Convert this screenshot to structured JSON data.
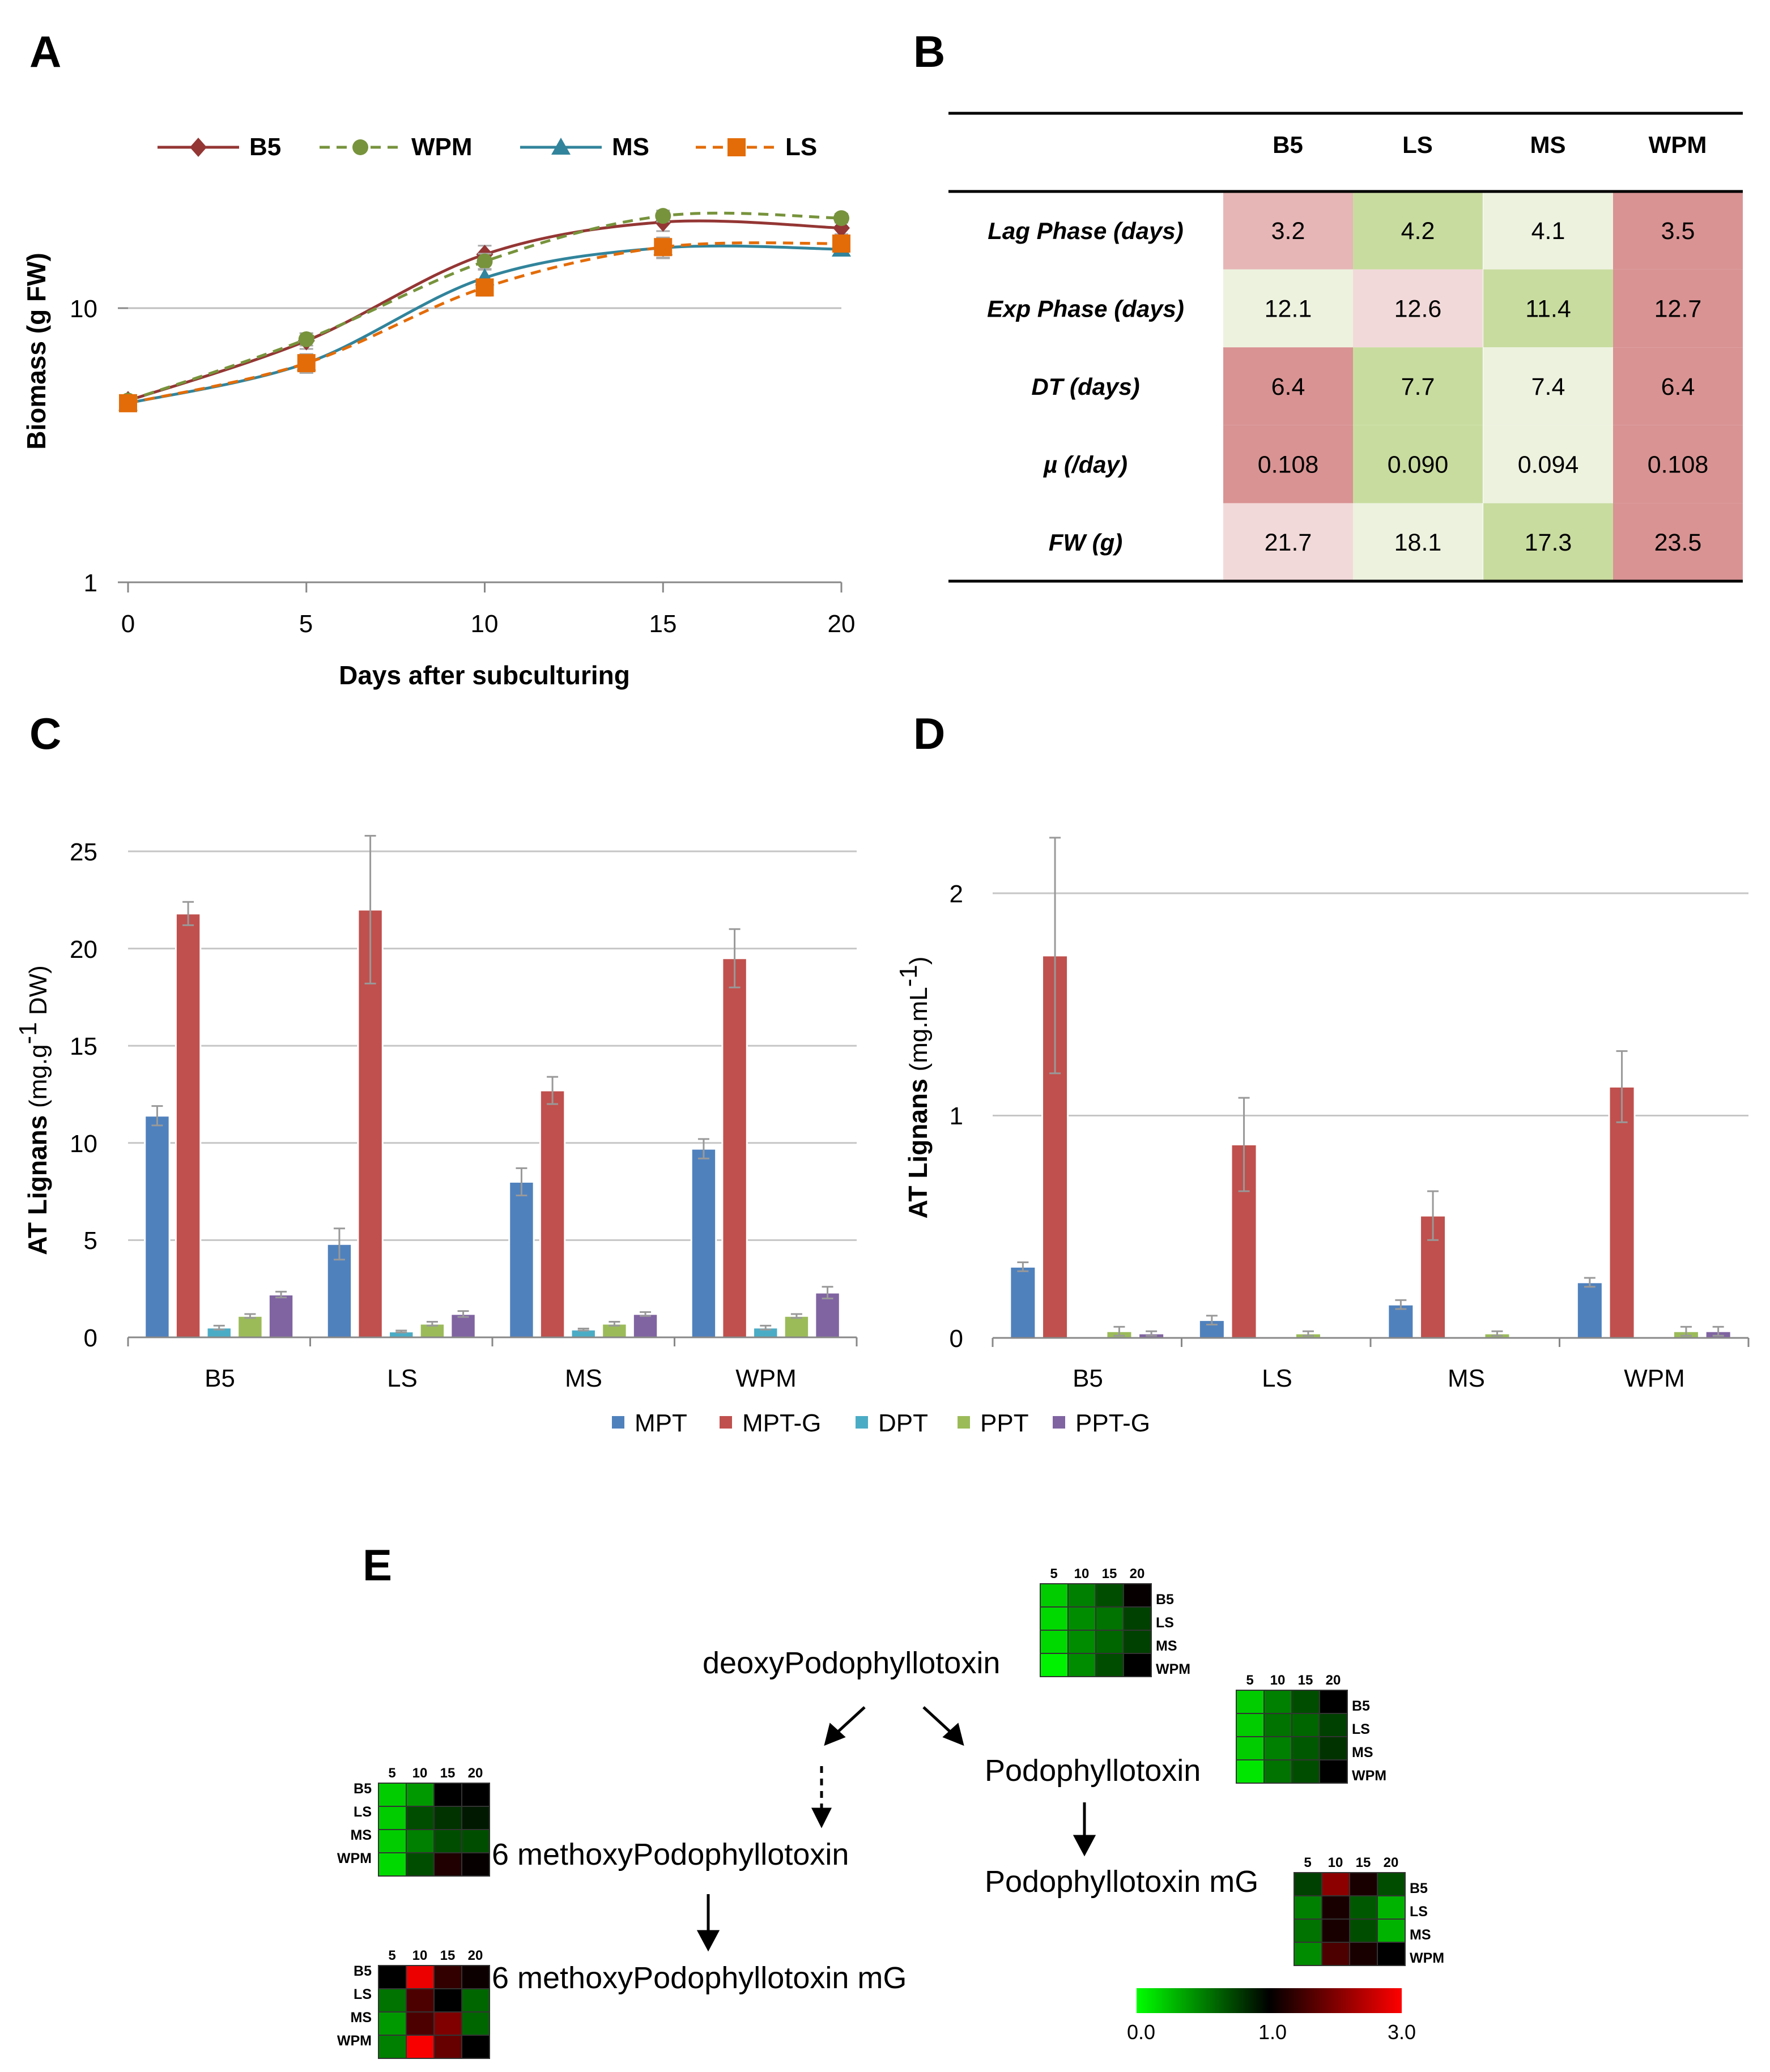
{
  "panels": {
    "a": "A",
    "b": "B",
    "c": "C",
    "d": "D",
    "e": "E"
  },
  "chart_data": [
    {
      "id": "A",
      "type": "line",
      "yscale": "log",
      "xlabel": "Days after subculturing",
      "ylabel": "Biomass (g FW)",
      "x": [
        0,
        5,
        10,
        15,
        20
      ],
      "xticks": [
        "0",
        "5",
        "10",
        "15",
        "20"
      ],
      "yticks": [
        "1",
        "10"
      ],
      "ylim": [
        1,
        30
      ],
      "legend_position": "top",
      "series": [
        {
          "name": "B5",
          "marker": "diamond",
          "dashed": false,
          "color": "#943634",
          "values": [
            4.6,
            7.6,
            15.7,
            20.6,
            19.6
          ],
          "err": [
            0.2,
            0.5,
            1.2,
            1.5,
            1.0
          ]
        },
        {
          "name": "WPM",
          "marker": "circle",
          "dashed": true,
          "color": "#77933c",
          "values": [
            4.6,
            7.7,
            14.8,
            21.7,
            21.3
          ],
          "err": [
            0.2,
            0.4,
            1.0,
            1.0,
            0.8
          ]
        },
        {
          "name": "MS",
          "marker": "triangle",
          "dashed": false,
          "color": "#31849b",
          "values": [
            4.5,
            6.3,
            12.9,
            16.6,
            16.4
          ],
          "err": [
            0.2,
            0.5,
            1.0,
            1.4,
            0.6
          ]
        },
        {
          "name": "LS",
          "marker": "square",
          "dashed": true,
          "color": "#e36c09",
          "values": [
            4.5,
            6.3,
            11.9,
            16.7,
            17.2
          ],
          "err": [
            0.2,
            0.5,
            0.8,
            1.4,
            0.8
          ]
        }
      ]
    },
    {
      "id": "B",
      "type": "table",
      "columns": [
        "B5",
        "LS",
        "MS",
        "WPM"
      ],
      "rows": [
        {
          "label": "Lag Phase (days)",
          "values": [
            "3.2",
            "4.2",
            "4.1",
            "3.5"
          ],
          "colors": [
            "#e6b6b6",
            "#c9dca0",
            "#edf2df",
            "#d99393"
          ]
        },
        {
          "label": "Exp Phase (days)",
          "values": [
            "12.1",
            "12.6",
            "11.4",
            "12.7"
          ],
          "colors": [
            "#edf2df",
            "#f2d9d9",
            "#c9dca0",
            "#d99393"
          ]
        },
        {
          "label": "DT (days)",
          "values": [
            "6.4",
            "7.7",
            "7.4",
            "6.4"
          ],
          "colors": [
            "#d99393",
            "#c9dca0",
            "#edf2df",
            "#d99393"
          ]
        },
        {
          "label": "µ (/day)",
          "values": [
            "0.108",
            "0.090",
            "0.094",
            "0.108"
          ],
          "colors": [
            "#d99393",
            "#c9dca0",
            "#edf2df",
            "#d99393"
          ]
        },
        {
          "label": "FW (g)",
          "values": [
            "21.7",
            "18.1",
            "17.3",
            "23.5"
          ],
          "colors": [
            "#f2d9d9",
            "#edf2df",
            "#c9dca0",
            "#d99393"
          ]
        }
      ]
    },
    {
      "id": "C",
      "type": "bar",
      "ylabel_main": "AT Lignans ",
      "ylabel_unit": "(mg.g",
      "ylabel_sup": "-1",
      "ylabel_end": " DW)",
      "categories": [
        "B5",
        "LS",
        "MS",
        "WPM"
      ],
      "yticks": [
        "0",
        "5",
        "10",
        "15",
        "20",
        "25"
      ],
      "ylim": [
        0,
        25
      ],
      "series": [
        {
          "name": "MPT",
          "color": "#4f81bd",
          "values": [
            11.4,
            4.8,
            8.0,
            9.7
          ],
          "err": [
            0.5,
            0.8,
            0.7,
            0.5
          ]
        },
        {
          "name": "MPT-G",
          "color": "#c0504d",
          "values": [
            21.8,
            22.0,
            12.7,
            19.5
          ],
          "err": [
            0.6,
            3.8,
            0.7,
            1.5
          ]
        },
        {
          "name": "DPT",
          "color": "#4bacc6",
          "values": [
            0.5,
            0.3,
            0.4,
            0.5
          ],
          "err": [
            0.1,
            0.05,
            0.05,
            0.1
          ]
        },
        {
          "name": "PPT",
          "color": "#9bbb59",
          "values": [
            1.1,
            0.7,
            0.7,
            1.1
          ],
          "err": [
            0.1,
            0.1,
            0.1,
            0.1
          ]
        },
        {
          "name": "PPT-G",
          "color": "#8064a2",
          "values": [
            2.2,
            1.2,
            1.2,
            2.3
          ],
          "err": [
            0.15,
            0.15,
            0.1,
            0.3
          ]
        }
      ]
    },
    {
      "id": "D",
      "type": "bar",
      "ylabel_main": "AT Lignans ",
      "ylabel_unit": "(mg.mL",
      "ylabel_sup": "-1",
      "ylabel_end": ")",
      "categories": [
        "B5",
        "LS",
        "MS",
        "WPM"
      ],
      "yticks": [
        "0",
        "1",
        "2"
      ],
      "ylim": [
        0,
        2
      ],
      "series": [
        {
          "name": "MPT",
          "color": "#4f81bd",
          "values": [
            0.32,
            0.08,
            0.15,
            0.25
          ],
          "err": [
            0.02,
            0.02,
            0.02,
            0.02
          ]
        },
        {
          "name": "MPT-G",
          "color": "#c0504d",
          "values": [
            1.72,
            0.87,
            0.55,
            1.13
          ],
          "err": [
            0.53,
            0.21,
            0.11,
            0.16
          ]
        },
        {
          "name": "DPT",
          "color": "#4bacc6",
          "values": [
            0.0,
            0.0,
            0.0,
            0.0
          ],
          "err": [
            0,
            0,
            0,
            0
          ]
        },
        {
          "name": "PPT",
          "color": "#9bbb59",
          "values": [
            0.03,
            0.02,
            0.02,
            0.03
          ],
          "err": [
            0.02,
            0.01,
            0.01,
            0.02
          ]
        },
        {
          "name": "PPT-G",
          "color": "#8064a2",
          "values": [
            0.02,
            0.0,
            0.0,
            0.03
          ],
          "err": [
            0.01,
            0,
            0,
            0.02
          ]
        }
      ]
    }
  ],
  "bar_legend": [
    "MPT",
    "MPT-G",
    "DPT",
    "PPT",
    "PPT-G"
  ],
  "pathway": {
    "compounds": {
      "dpt": "deoxyPodophyllotoxin",
      "ppt": "Podophyllotoxin",
      "mpt": "6 methoxyPodophyllotoxin",
      "pptg": "Podophyllotoxin mG",
      "mptg": "6 methoxyPodophyllotoxin mG"
    },
    "heatmap_cols": [
      "5",
      "10",
      "15",
      "20"
    ],
    "heatmap_rows": [
      "B5",
      "LS",
      "MS",
      "WPM"
    ],
    "heatmaps": {
      "dpt": [
        [
          0.2,
          0.5,
          0.7,
          1.05
        ],
        [
          0.15,
          0.45,
          0.55,
          0.75
        ],
        [
          0.15,
          0.45,
          0.6,
          0.75
        ],
        [
          0.05,
          0.45,
          0.7,
          1.0
        ]
      ],
      "ppt": [
        [
          0.2,
          0.5,
          0.7,
          1.0
        ],
        [
          0.2,
          0.55,
          0.6,
          0.75
        ],
        [
          0.2,
          0.5,
          0.65,
          0.8
        ],
        [
          0.1,
          0.55,
          0.7,
          1.0
        ]
      ],
      "mpt": [
        [
          0.2,
          0.4,
          1.0,
          1.0
        ],
        [
          0.2,
          0.7,
          0.8,
          0.9
        ],
        [
          0.2,
          0.5,
          0.7,
          0.7
        ],
        [
          0.15,
          0.7,
          1.25,
          1.05
        ]
      ],
      "pptg": [
        [
          0.75,
          2.1,
          1.2,
          0.7
        ],
        [
          0.5,
          1.2,
          0.65,
          0.3
        ],
        [
          0.55,
          1.2,
          0.7,
          0.3
        ],
        [
          0.45,
          1.6,
          1.2,
          1.0
        ]
      ],
      "mptg": [
        [
          1.0,
          2.85,
          1.4,
          1.1
        ],
        [
          0.55,
          1.6,
          1.0,
          0.6
        ],
        [
          0.4,
          1.6,
          2.0,
          0.6
        ],
        [
          0.5,
          2.95,
          1.8,
          1.0
        ]
      ]
    },
    "scale": {
      "min": "0.0",
      "mid": "1.0",
      "max": "3.0",
      "colors": {
        "low": "#00ff00",
        "mid": "#000000",
        "high": "#ff0000"
      }
    }
  }
}
